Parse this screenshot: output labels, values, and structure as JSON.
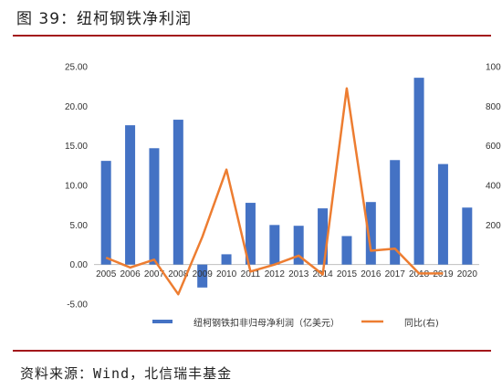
{
  "figure": {
    "title": "图 39：纽柯钢铁净利润",
    "source": "资料来源：Wind，北信瑞丰基金"
  },
  "colors": {
    "bar": "#4472c4",
    "line": "#ed7d31",
    "rule": "#a3171b"
  },
  "chart_data": {
    "type": "bar",
    "categories": [
      "2005",
      "2006",
      "2007",
      "2008",
      "2009",
      "2010",
      "2011",
      "2012",
      "2013",
      "2014",
      "2015",
      "2016",
      "2017",
      "2018",
      "2019",
      "2020"
    ],
    "series": [
      {
        "name": "纽柯钢铁扣非归母净利润（亿美元）",
        "type": "bar",
        "axis": "left",
        "values": [
          13.1,
          17.6,
          14.7,
          18.3,
          -2.9,
          1.3,
          7.8,
          5.0,
          4.9,
          7.1,
          3.6,
          7.9,
          13.2,
          23.6,
          12.7,
          7.2
        ]
      },
      {
        "name": "同比(右)",
        "type": "line",
        "axis": "right",
        "values": [
          35,
          -15,
          25,
          -150,
          140,
          480,
          -35,
          0,
          45,
          -50,
          890,
          70,
          80,
          -45,
          -45,
          null
        ]
      }
    ],
    "y_left": {
      "range": [
        -5,
        25
      ],
      "ticks": [
        "-5.00",
        "0.00",
        "5.00",
        "10.00",
        "15.00",
        "20.00",
        "25.00"
      ]
    },
    "y_right": {
      "range": [
        -200,
        1000
      ],
      "ticks": [
        "100",
        "800",
        "600",
        "400",
        "200"
      ]
    },
    "legend": "bottom",
    "grid": false
  }
}
